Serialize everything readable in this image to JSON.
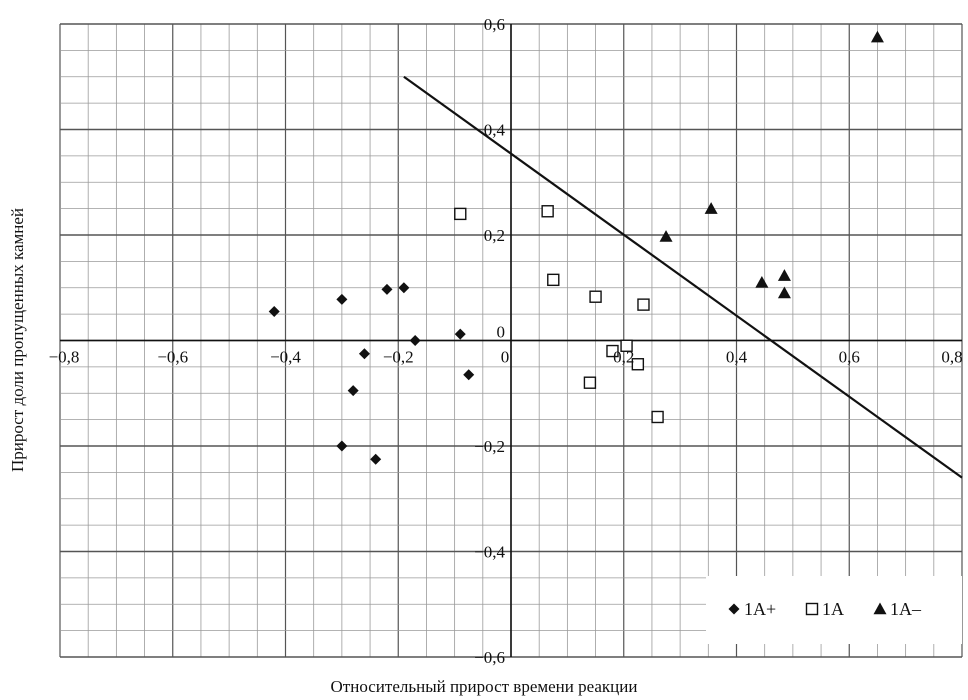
{
  "chart_data": {
    "type": "scatter",
    "xlabel": "Относительный прирост времени реакции",
    "ylabel": "Прирост доли пропущенных камней",
    "xlim": [
      -0.8,
      0.8
    ],
    "ylim": [
      -0.6,
      0.6
    ],
    "x_ticks": [
      "−0,8",
      "−0,6",
      "−0,4",
      "−0,2",
      "0",
      "0,2",
      "0,4",
      "0,6",
      "0,8"
    ],
    "y_ticks": [
      "0,6",
      "0,4",
      "0,2",
      "0",
      "−0,2",
      "−0,4",
      "−0,6"
    ],
    "grid": true,
    "legend_position": "bottom-right",
    "series": [
      {
        "name": "1A+",
        "marker": "diamond-filled",
        "points": [
          [
            -0.42,
            0.055
          ],
          [
            -0.3,
            0.078
          ],
          [
            -0.22,
            0.097
          ],
          [
            -0.19,
            0.1
          ],
          [
            -0.17,
            0.0
          ],
          [
            -0.09,
            0.012
          ],
          [
            -0.075,
            -0.065
          ],
          [
            -0.26,
            -0.025
          ],
          [
            -0.28,
            -0.095
          ],
          [
            -0.3,
            -0.2
          ],
          [
            -0.24,
            -0.225
          ]
        ]
      },
      {
        "name": "1A",
        "marker": "square-open",
        "points": [
          [
            -0.09,
            0.24
          ],
          [
            0.065,
            0.245
          ],
          [
            0.075,
            0.115
          ],
          [
            0.15,
            0.083
          ],
          [
            0.235,
            0.068
          ],
          [
            0.205,
            -0.01
          ],
          [
            0.18,
            -0.02
          ],
          [
            0.225,
            -0.045
          ],
          [
            0.14,
            -0.08
          ],
          [
            0.26,
            -0.145
          ]
        ]
      },
      {
        "name": "1A–",
        "marker": "triangle-filled",
        "points": [
          [
            0.65,
            0.575
          ],
          [
            0.355,
            0.25
          ],
          [
            0.275,
            0.197
          ],
          [
            0.445,
            0.11
          ],
          [
            0.485,
            0.123
          ],
          [
            0.485,
            0.09
          ]
        ]
      }
    ],
    "trendline": {
      "x": [
        -0.19,
        0.8
      ],
      "y": [
        0.5,
        -0.26
      ]
    }
  },
  "colors": {
    "grid_major": "#555555",
    "grid_minor": "#9a9a9a",
    "axis": "#111111",
    "marker": "#111111"
  }
}
